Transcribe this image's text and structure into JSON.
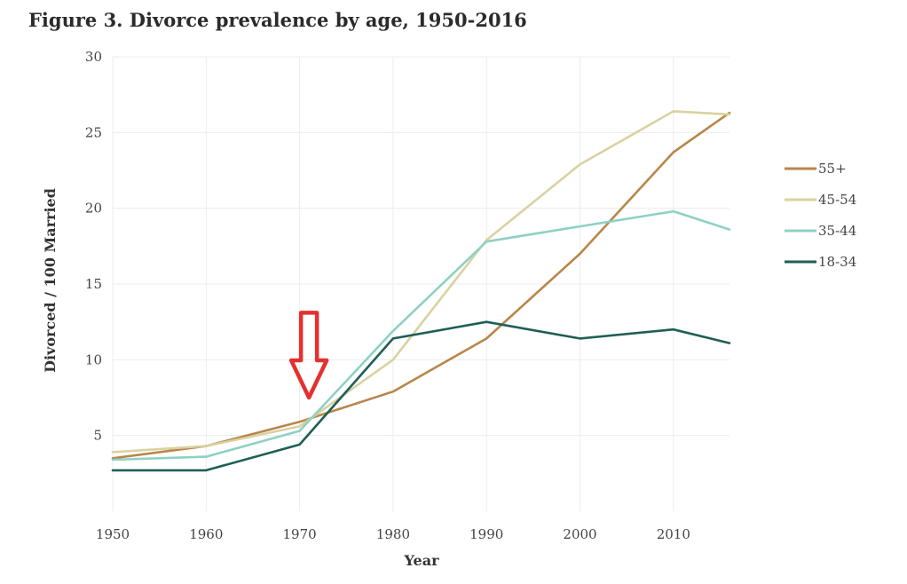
{
  "chart_data": {
    "type": "line",
    "title": "Figure 3. Divorce prevalence by age, 1950-2016",
    "xlabel": "Year",
    "ylabel": "Divorced / 100 Married",
    "xlim": [
      1950,
      2016
    ],
    "ylim": [
      0,
      30
    ],
    "x_ticks": [
      1950,
      1960,
      1970,
      1980,
      1990,
      2000,
      2010
    ],
    "y_ticks": [
      5,
      10,
      15,
      20,
      25,
      30
    ],
    "grid": true,
    "legend_position": "right",
    "x": [
      1950,
      1960,
      1970,
      1980,
      1990,
      2000,
      2010,
      2016
    ],
    "series": [
      {
        "name": "55+",
        "color": "#b8864a",
        "values": [
          3.5,
          4.3,
          5.9,
          7.9,
          11.4,
          17.0,
          23.7,
          26.3
        ]
      },
      {
        "name": "45-54",
        "color": "#d9d2a0",
        "values": [
          3.9,
          4.3,
          5.6,
          10.0,
          17.9,
          22.9,
          26.4,
          26.2
        ]
      },
      {
        "name": "35-44",
        "color": "#8fd0c4",
        "values": [
          3.4,
          3.6,
          5.3,
          11.9,
          17.8,
          18.8,
          19.8,
          18.6
        ]
      },
      {
        "name": "18-34",
        "color": "#1f5f55",
        "values": [
          2.7,
          2.7,
          4.4,
          11.4,
          12.5,
          11.4,
          12.0,
          11.1
        ]
      }
    ],
    "annotation": {
      "type": "arrow",
      "color": "#e53030",
      "x": 1971,
      "y_top": 13.1,
      "y_bottom": 7.5,
      "direction": "down"
    }
  }
}
